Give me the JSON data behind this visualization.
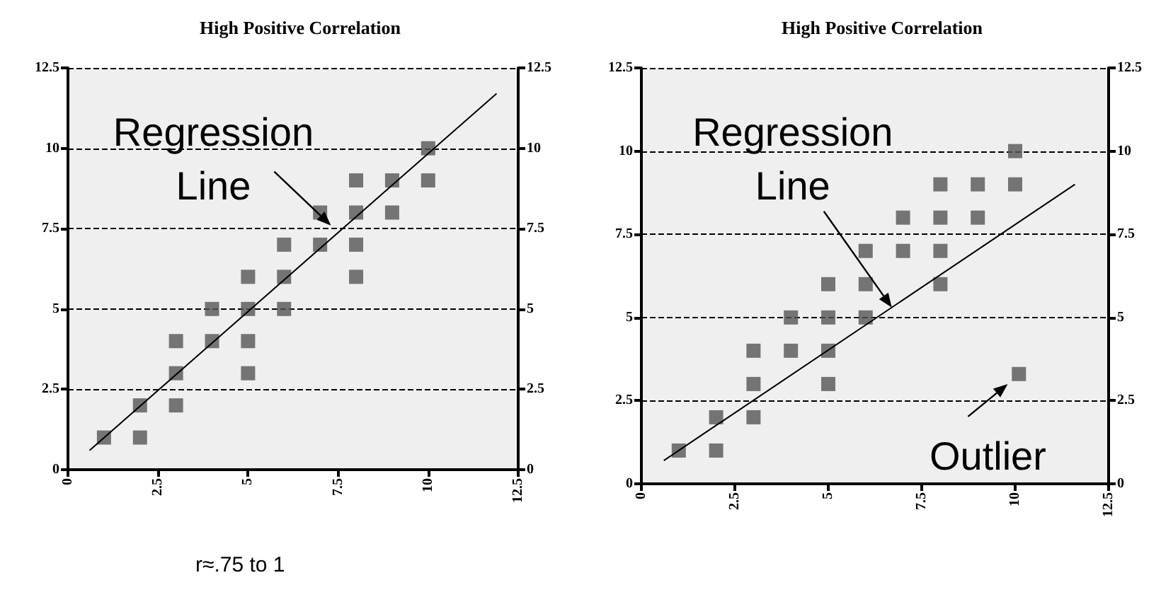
{
  "chart_data": [
    {
      "type": "scatter",
      "title": "High Positive Correlation",
      "xlim": [
        0,
        12.5
      ],
      "xticks": [
        0,
        2.5,
        5,
        7.5,
        10,
        12.5
      ],
      "ylim": [
        0,
        12.5
      ],
      "yticks": [
        0,
        2.5,
        5,
        7.5,
        10,
        12.5
      ],
      "y2lim": [
        0,
        12.5
      ],
      "y2ticks": [
        0,
        2.5,
        5,
        7.5,
        10,
        12.5
      ],
      "grid": "y",
      "marker": "square",
      "series": [
        {
          "color": "#555555",
          "x": [
            1,
            2,
            2,
            3,
            3,
            3,
            4,
            4,
            5,
            5,
            5,
            5,
            6,
            6,
            6,
            7,
            7,
            8,
            8,
            8,
            8,
            9,
            9,
            10,
            10
          ],
          "values": [
            1,
            2,
            1,
            4,
            3,
            2,
            5,
            4,
            6,
            5,
            4,
            3,
            7,
            6,
            5,
            8,
            7,
            9,
            8,
            7,
            6,
            9,
            8,
            10,
            9
          ]
        },
        {
          "type": "line",
          "color": "#000000",
          "marker": "none",
          "line_style": "solid",
          "x": [
            0.6,
            11.9
          ],
          "values": [
            0.6,
            11.7
          ]
        }
      ],
      "annotations": [
        {
          "text": "Regression Line",
          "x": 7.3,
          "y": 7.6
        },
        "r≈.75 to 1"
      ]
    },
    {
      "type": "scatter",
      "title": "High Positive Correlation",
      "xlim": [
        0,
        12.5
      ],
      "xticks": [
        0,
        2.5,
        5,
        7.5,
        10,
        12.5
      ],
      "ylim": [
        0,
        12.5
      ],
      "yticks": [
        0,
        2.5,
        5,
        7.5,
        10,
        12.5
      ],
      "y2lim": [
        0,
        12.5
      ],
      "y2ticks": [
        0,
        2.5,
        5,
        7.5,
        10,
        12.5
      ],
      "grid": "y",
      "marker": "square",
      "series": [
        {
          "color": "#555555",
          "x": [
            1,
            2,
            2,
            3,
            3,
            3,
            4,
            4,
            5,
            5,
            5,
            5,
            6,
            6,
            6,
            7,
            7,
            8,
            8,
            8,
            8,
            9,
            9,
            10,
            10,
            10.1
          ],
          "values": [
            1,
            2,
            1,
            4,
            3,
            2,
            5,
            4,
            6,
            5,
            4,
            3,
            7,
            6,
            5,
            8,
            7,
            9,
            8,
            7,
            6,
            9,
            8,
            10,
            9,
            3.3
          ]
        },
        {
          "type": "line",
          "color": "#000000",
          "marker": "none",
          "line_style": "solid",
          "x": [
            0.6,
            11.6
          ],
          "values": [
            0.7,
            9.0
          ]
        }
      ],
      "annotations": [
        {
          "text": "Regression Line",
          "x": 6.7,
          "y": 5.3
        },
        {
          "text": "Outlier",
          "x": 9.8,
          "y": 3.0
        }
      ]
    }
  ]
}
